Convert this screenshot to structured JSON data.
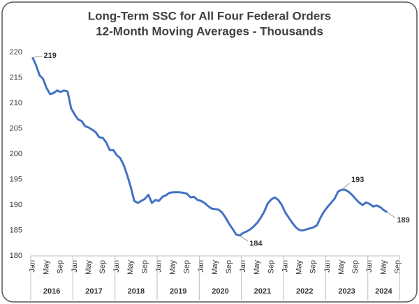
{
  "chart_data": {
    "type": "line",
    "title": "Long-Term  SSC for All Four Federal Orders",
    "subtitle": "12-Month Moving Averages - Thousands",
    "categories": [
      "Jan",
      null,
      null,
      null,
      "May",
      null,
      null,
      null,
      "Sep",
      null,
      null,
      null,
      "Jan",
      null,
      null,
      null,
      "May",
      null,
      null,
      null,
      "Sep",
      null,
      null,
      null,
      "Jan",
      null,
      null,
      null,
      "May",
      null,
      null,
      null,
      "Sep",
      null,
      null,
      null,
      "Jan",
      null,
      null,
      null,
      "May",
      null,
      null,
      null,
      "Sep",
      null,
      null,
      null,
      "Jan",
      null,
      null,
      null,
      "May",
      null,
      null,
      null,
      "Sep",
      null,
      null,
      null,
      "Jan",
      null,
      null,
      null,
      "May",
      null,
      null,
      null,
      "Sep",
      null,
      null,
      null,
      "Jan",
      null,
      null,
      null,
      "May",
      null,
      null,
      null,
      "Sep",
      null,
      null,
      null,
      "Jan",
      null,
      null,
      null,
      "May",
      null,
      null,
      null,
      "Sep",
      null,
      null,
      null,
      "Jan",
      null,
      null,
      null,
      "May",
      null,
      null,
      null,
      "Sep"
    ],
    "years": [
      "2016",
      "2017",
      "2018",
      "2019",
      "2020",
      "2021",
      "2022",
      "2023",
      "2024"
    ],
    "series": [
      {
        "name": "SSC",
        "color": "#4472c4",
        "values": [
          219,
          217.5,
          215.5,
          214.8,
          213,
          211.8,
          212,
          212.5,
          212.2,
          212.5,
          212.3,
          209,
          207.8,
          206.8,
          206.5,
          205.5,
          205.2,
          204.8,
          204.3,
          203.3,
          203.2,
          202.3,
          200.8,
          200.8,
          199.8,
          199.2,
          197.8,
          195.8,
          193.5,
          190.8,
          190.4,
          190.8,
          191.2,
          192,
          190.4,
          191,
          190.8,
          191.6,
          191.9,
          192.4,
          192.5,
          192.5,
          192.5,
          192.4,
          192.2,
          191.5,
          191.6,
          191,
          190.8,
          190.4,
          189.8,
          189.3,
          189.2,
          189.1,
          188.5,
          187.5,
          186.3,
          185.3,
          184.2,
          184,
          184.5,
          184.8,
          185.2,
          185.8,
          186.5,
          187.5,
          188.7,
          190.3,
          191.1,
          191.5,
          191,
          190,
          188.5,
          187.5,
          186.5,
          185.6,
          185.1,
          185,
          185.2,
          185.4,
          185.6,
          186,
          187.5,
          188.7,
          189.6,
          190.4,
          191.2,
          192.6,
          193,
          193,
          192.6,
          192,
          191.2,
          190.5,
          190,
          190.5,
          190.2,
          189.7,
          189.9,
          189.6,
          189,
          188.6,
          null,
          null,
          null
        ],
        "value_labels": [
          "219",
          null,
          null,
          null,
          null,
          null,
          null,
          null,
          null,
          null,
          null,
          null,
          null,
          null,
          null,
          null,
          null,
          null,
          null,
          null,
          null,
          null,
          null,
          null,
          null,
          null,
          null,
          null,
          null,
          null,
          null,
          null,
          null,
          null,
          null,
          null,
          null,
          null,
          null,
          null,
          null,
          null,
          null,
          null,
          null,
          null,
          null,
          null,
          null,
          null,
          null,
          null,
          null,
          null,
          null,
          null,
          null,
          null,
          null,
          "184",
          null,
          null,
          null,
          null,
          null,
          null,
          null,
          null,
          null,
          null,
          null,
          null,
          null,
          null,
          null,
          null,
          null,
          null,
          null,
          null,
          null,
          null,
          null,
          null,
          null,
          null,
          null,
          null,
          "193",
          null,
          null,
          null,
          null,
          null,
          null,
          null,
          null,
          null,
          null,
          null,
          null,
          "189",
          null,
          null,
          null
        ]
      }
    ],
    "ylim": [
      180,
      220
    ],
    "yticks": [
      180,
      185,
      190,
      195,
      200,
      205,
      210,
      215,
      220
    ],
    "grid": false
  }
}
